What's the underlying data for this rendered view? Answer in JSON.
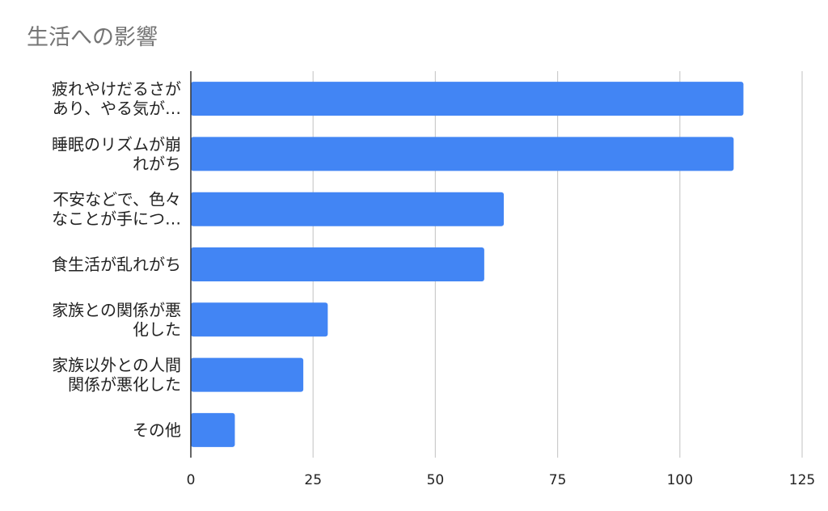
{
  "chart_data": {
    "type": "bar",
    "orientation": "horizontal",
    "title": "生活への影響",
    "categories": [
      [
        "疲れやけだるさが",
        "あり、やる気が…"
      ],
      [
        "睡眠のリズムが崩",
        "れがち"
      ],
      [
        "不安などで、色々",
        "なことが手につ…"
      ],
      [
        "食生活が乱れがち"
      ],
      [
        "家族との関係が悪",
        "化した"
      ],
      [
        "家族以外との人間",
        "関係が悪化した"
      ],
      [
        "その他"
      ]
    ],
    "values": [
      113,
      111,
      64,
      60,
      28,
      23,
      9
    ],
    "xlim": [
      0,
      125
    ],
    "xticks": [
      "0",
      "25",
      "50",
      "75",
      "100",
      "125"
    ],
    "grid": true,
    "legend": "none",
    "colors": {
      "bar": "#4285f4",
      "grid": "#cccccc",
      "axis": "#333333",
      "title": "#757575",
      "text": "#222222"
    }
  }
}
